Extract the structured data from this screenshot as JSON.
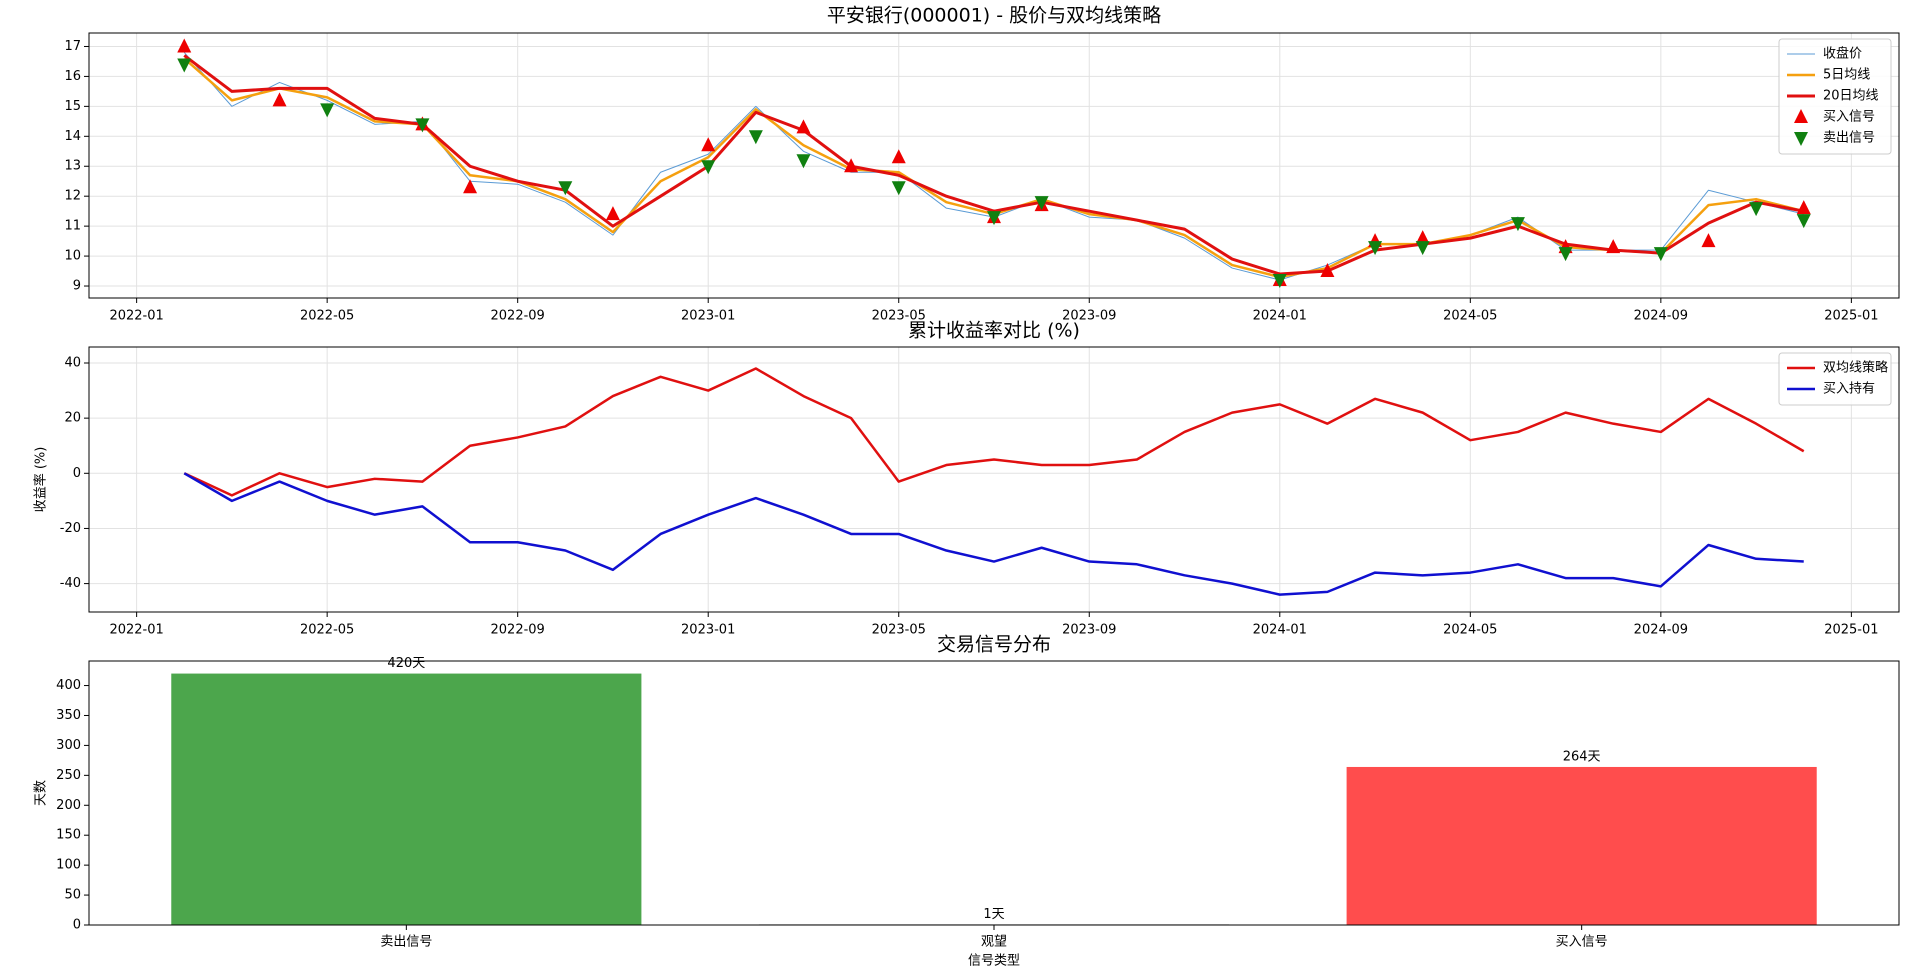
{
  "chart_data": [
    {
      "type": "line",
      "title": "平安银行(000001) - 股价与双均线策略",
      "x": [
        "2022-02",
        "2022-03",
        "2022-04",
        "2022-05",
        "2022-06",
        "2022-07",
        "2022-08",
        "2022-09",
        "2022-10",
        "2022-11",
        "2022-12",
        "2023-01",
        "2023-02",
        "2023-03",
        "2023-04",
        "2023-05",
        "2023-06",
        "2023-07",
        "2023-08",
        "2023-09",
        "2023-10",
        "2023-11",
        "2023-12",
        "2024-01",
        "2024-02",
        "2024-03",
        "2024-04",
        "2024-05",
        "2024-06",
        "2024-07",
        "2024-08",
        "2024-09",
        "2024-10",
        "2024-11",
        "2024-12"
      ],
      "series": [
        {
          "name": "收盘价",
          "color": "#5b9bd5",
          "width": 1,
          "values": [
            16.8,
            15.0,
            15.8,
            15.2,
            14.4,
            14.5,
            12.5,
            12.4,
            11.8,
            10.7,
            12.8,
            13.4,
            15.0,
            13.5,
            12.8,
            12.8,
            11.6,
            11.3,
            11.9,
            11.3,
            11.2,
            10.6,
            9.6,
            9.2,
            9.7,
            10.4,
            10.4,
            10.7,
            11.3,
            10.2,
            10.2,
            10.2,
            12.2,
            11.8,
            11.4
          ]
        },
        {
          "name": "5日均线",
          "color": "#f5a00f",
          "width": 2.5,
          "values": [
            16.6,
            15.2,
            15.6,
            15.3,
            14.5,
            14.4,
            12.7,
            12.5,
            11.9,
            10.8,
            12.5,
            13.3,
            14.9,
            13.7,
            12.9,
            12.8,
            11.8,
            11.4,
            11.9,
            11.4,
            11.2,
            10.7,
            9.7,
            9.3,
            9.6,
            10.4,
            10.4,
            10.7,
            11.2,
            10.3,
            10.2,
            10.1,
            11.7,
            11.9,
            11.5
          ]
        },
        {
          "name": "20日均线",
          "color": "#e01010",
          "width": 3,
          "values": [
            16.7,
            15.5,
            15.6,
            15.6,
            14.6,
            14.4,
            13.0,
            12.5,
            12.2,
            11.0,
            12.0,
            13.0,
            14.8,
            14.2,
            13.0,
            12.7,
            12.0,
            11.5,
            11.8,
            11.5,
            11.2,
            10.9,
            9.9,
            9.4,
            9.5,
            10.2,
            10.4,
            10.6,
            11.0,
            10.4,
            10.2,
            10.1,
            11.1,
            11.8,
            11.5
          ]
        }
      ],
      "signals": [
        {
          "name": "买入信号",
          "color": "#ee0000",
          "marker": "up",
          "x": [
            "2022-02",
            "2022-04",
            "2022-07",
            "2022-08",
            "2022-11",
            "2023-01",
            "2023-03",
            "2023-04",
            "2023-05",
            "2023-07",
            "2023-08",
            "2024-01",
            "2024-02",
            "2024-03",
            "2024-04",
            "2024-07",
            "2024-08",
            "2024-10",
            "2024-12"
          ],
          "values": [
            17.0,
            15.2,
            14.4,
            12.3,
            11.4,
            13.7,
            14.3,
            13.0,
            13.3,
            11.3,
            11.7,
            9.2,
            9.5,
            10.5,
            10.6,
            10.3,
            10.3,
            10.5,
            11.6
          ]
        },
        {
          "name": "卖出信号",
          "color": "#108010",
          "marker": "down",
          "x": [
            "2022-02",
            "2022-05",
            "2022-07",
            "2022-10",
            "2023-01",
            "2023-02",
            "2023-03",
            "2023-05",
            "2023-07",
            "2023-08",
            "2024-01",
            "2024-03",
            "2024-04",
            "2024-06",
            "2024-07",
            "2024-09",
            "2024-11",
            "2024-12"
          ],
          "values": [
            16.4,
            14.9,
            14.4,
            12.3,
            13.0,
            14.0,
            13.2,
            12.3,
            11.3,
            11.8,
            9.2,
            10.3,
            10.3,
            11.1,
            10.1,
            10.1,
            11.6,
            11.2
          ]
        }
      ],
      "xlim": [
        "2021-12",
        "2025-02"
      ],
      "xticks": [
        "2022-01",
        "2022-05",
        "2022-09",
        "2023-01",
        "2023-05",
        "2023-09",
        "2024-01",
        "2024-05",
        "2024-09",
        "2025-01"
      ],
      "ylim": [
        8.6,
        17.45
      ],
      "yticks": [
        9,
        10,
        11,
        12,
        13,
        14,
        15,
        16,
        17
      ],
      "grid": true,
      "legend": "upper right"
    },
    {
      "type": "line",
      "title": "累计收益率对比 (%)",
      "ylabel": "收益率 (%)",
      "x": [
        "2022-02",
        "2022-03",
        "2022-04",
        "2022-05",
        "2022-06",
        "2022-07",
        "2022-08",
        "2022-09",
        "2022-10",
        "2022-11",
        "2022-12",
        "2023-01",
        "2023-02",
        "2023-03",
        "2023-04",
        "2023-05",
        "2023-06",
        "2023-07",
        "2023-08",
        "2023-09",
        "2023-10",
        "2023-11",
        "2023-12",
        "2024-01",
        "2024-02",
        "2024-03",
        "2024-04",
        "2024-05",
        "2024-06",
        "2024-07",
        "2024-08",
        "2024-09",
        "2024-10",
        "2024-11",
        "2024-12"
      ],
      "series": [
        {
          "name": "双均线策略",
          "color": "#e01010",
          "width": 2.5,
          "values": [
            0,
            -8,
            0,
            -5,
            -2,
            -3,
            10,
            13,
            17,
            28,
            35,
            30,
            38,
            28,
            20,
            -3,
            3,
            5,
            3,
            3,
            5,
            15,
            22,
            25,
            18,
            27,
            22,
            12,
            15,
            22,
            18,
            15,
            27,
            18,
            8
          ]
        },
        {
          "name": "买入持有",
          "color": "#1010d0",
          "width": 2.5,
          "values": [
            0,
            -10,
            -3,
            -10,
            -15,
            -12,
            -25,
            -25,
            -28,
            -35,
            -22,
            -15,
            -9,
            -15,
            -22,
            -22,
            -28,
            -32,
            -27,
            -32,
            -33,
            -37,
            -40,
            -44,
            -43,
            -36,
            -37,
            -36,
            -33,
            -38,
            -38,
            -41,
            -26,
            -31,
            -32
          ]
        }
      ],
      "xlim": [
        "2021-12",
        "2025-02"
      ],
      "xticks": [
        "2022-01",
        "2022-05",
        "2022-09",
        "2023-01",
        "2023-05",
        "2023-09",
        "2024-01",
        "2024-05",
        "2024-09",
        "2025-01"
      ],
      "ylim": [
        -50.3,
        45.8
      ],
      "yticks": [
        -40,
        -20,
        0,
        20,
        40
      ],
      "grid": true,
      "legend": "upper right"
    },
    {
      "type": "bar",
      "title": "交易信号分布",
      "xlabel": "信号类型",
      "ylabel": "天数",
      "categories": [
        "卖出信号",
        "观望",
        "买入信号"
      ],
      "values": [
        420,
        1,
        264
      ],
      "value_labels": [
        "420天",
        "1天",
        "264天"
      ],
      "colors": [
        "#4ca64c",
        "#808080",
        "#ff4d4d"
      ],
      "ylim": [
        0,
        441
      ],
      "yticks": [
        0,
        50,
        100,
        150,
        200,
        250,
        300,
        350,
        400
      ],
      "grid": false
    }
  ]
}
